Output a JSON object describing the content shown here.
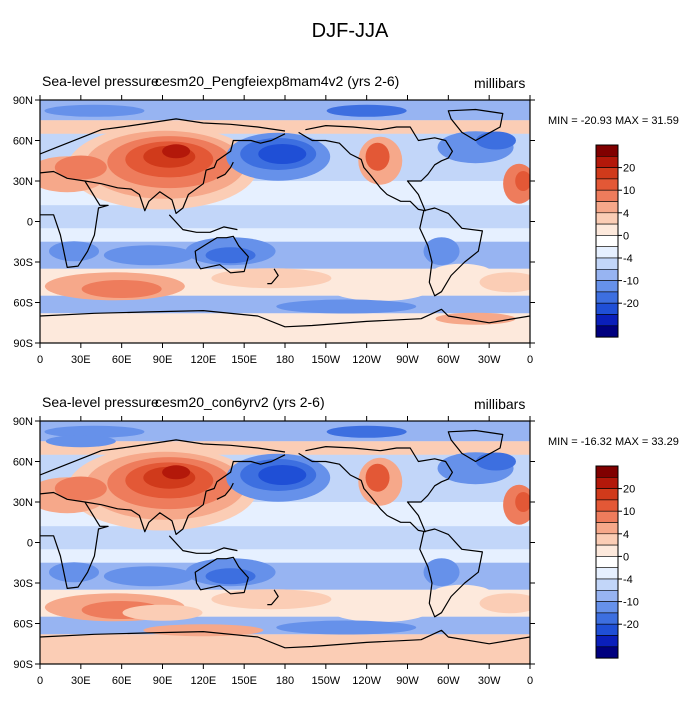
{
  "title": "DJF-JJA",
  "units": "millibars",
  "colors": [
    "#00007f",
    "#0a1fbb",
    "#1f4fd6",
    "#3d6fe0",
    "#6691ea",
    "#97b4f2",
    "#c2d6f9",
    "#e6f0ff",
    "#ffffff",
    "#fde9dc",
    "#fbcdb5",
    "#f6a88a",
    "#ee7c5c",
    "#e35836",
    "#d03a1b",
    "#b3180a",
    "#800000"
  ],
  "colorbar_labels": [
    "20",
    "10",
    "4",
    "0",
    "-4",
    "-10",
    "-20"
  ],
  "lat_ticks": [
    "90N",
    "60N",
    "30N",
    "0",
    "30S",
    "60S",
    "90S"
  ],
  "lon_ticks": [
    "0",
    "30E",
    "60E",
    "90E",
    "120E",
    "150E",
    "180",
    "150W",
    "120W",
    "90W",
    "60W",
    "30W",
    "0"
  ],
  "panels": [
    {
      "variable": "Sea-level pressure",
      "case": "cesm20_Pengfeiexp8mam4v2 (yrs 2-6)",
      "units": "millibars",
      "minmax": "MIN = -20.93 MAX =  31.59"
    },
    {
      "variable": "Sea-level pressure",
      "case": "cesm20_con6yrv2 (yrs 2-6)",
      "units": "millibars",
      "minmax": "MIN = -16.32 MAX =  33.29"
    }
  ]
}
